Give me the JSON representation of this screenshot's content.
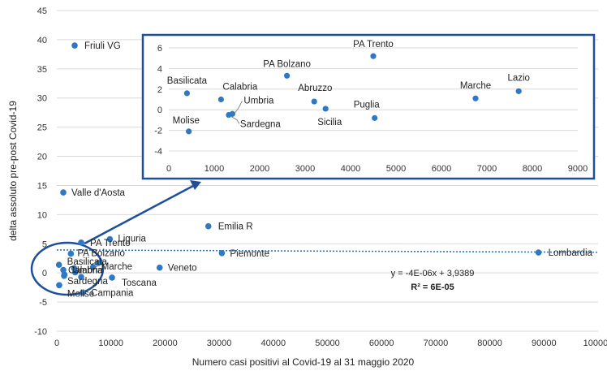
{
  "chart_data": [
    {
      "type": "scatter",
      "xlabel": "Numero casi positivi al Covid-19 al 31 maggio 2020",
      "ylabel": "delta assoluto pre-post Covid-19",
      "xlim": [
        0,
        100000
      ],
      "ylim": [
        -10,
        45
      ],
      "xticks": [
        0,
        10000,
        20000,
        30000,
        40000,
        50000,
        60000,
        70000,
        80000,
        90000,
        100000
      ],
      "yticks": [
        -10,
        -5,
        0,
        5,
        10,
        15,
        20,
        25,
        30,
        35,
        40,
        45
      ],
      "grid": true,
      "point_color": "#2f78c4",
      "points": [
        {
          "label": "Friuli VG",
          "x": 3300,
          "y": 39
        },
        {
          "label": "Valle d'Aosta",
          "x": 1200,
          "y": 13.8
        },
        {
          "label": "Emilia R",
          "x": 28000,
          "y": 8
        },
        {
          "label": "Liguria",
          "x": 9800,
          "y": 5.8
        },
        {
          "label": "PA Trento",
          "x": 4500,
          "y": 5.2
        },
        {
          "label": "PA Bolzano",
          "x": 2600,
          "y": 3.3
        },
        {
          "label": "Piemonte",
          "x": 30500,
          "y": 3.4
        },
        {
          "label": "Lombardia",
          "x": 89000,
          "y": 3.5
        },
        {
          "label": "Basilicata",
          "x": 400,
          "y": 1.4
        },
        {
          "label": "Marche",
          "x": 6700,
          "y": 1.0
        },
        {
          "label": "Veneto",
          "x": 19000,
          "y": 0.9
        },
        {
          "label": "Calabria",
          "x": 1200,
          "y": 0.5
        },
        {
          "label": "Umbria",
          "x": 1400,
          "y": -0.3
        },
        {
          "label": "Sardegna",
          "x": 1350,
          "y": -0.5
        },
        {
          "label": "Toscana",
          "x": 10200,
          "y": -0.8
        },
        {
          "label": "Molise",
          "x": 440,
          "y": -2.1
        },
        {
          "label": "Campania",
          "x": 4800,
          "y": -3.4
        },
        {
          "label": "",
          "x": 3200,
          "y": 0.8
        },
        {
          "label": "",
          "x": 3400,
          "y": 0.1
        },
        {
          "label": "",
          "x": 4500,
          "y": -0.7
        },
        {
          "label": "",
          "x": 7700,
          "y": 1.7
        }
      ],
      "trendline": {
        "equation": "y = -4E-06x + 3,9389",
        "r_squared": "R² = 6E-05",
        "slope": -4e-06,
        "intercept": 3.9389,
        "color": "#2f78c4"
      }
    },
    {
      "type": "scatter",
      "xlim": [
        0,
        9000
      ],
      "ylim": [
        -4,
        6
      ],
      "xticks": [
        0,
        1000,
        2000,
        3000,
        4000,
        5000,
        6000,
        7000,
        8000,
        9000
      ],
      "yticks": [
        -4,
        -2,
        0,
        2,
        4,
        6
      ],
      "grid": true,
      "point_color": "#2f78c4",
      "points": [
        {
          "label": "PA Trento",
          "x": 4500,
          "y": 5.2
        },
        {
          "label": "PA Bolzano",
          "x": 2600,
          "y": 3.3
        },
        {
          "label": "Basilicata",
          "x": 400,
          "y": 1.6
        },
        {
          "label": "Calabria",
          "x": 1150,
          "y": 1.0
        },
        {
          "label": "Abruzzo",
          "x": 3200,
          "y": 0.8
        },
        {
          "label": "Sicilia",
          "x": 3450,
          "y": 0.1
        },
        {
          "label": "Umbria",
          "x": 1400,
          "y": -0.4
        },
        {
          "label": "Sardegna",
          "x": 1320,
          "y": -0.5
        },
        {
          "label": "Puglia",
          "x": 4530,
          "y": -0.8
        },
        {
          "label": "Molise",
          "x": 440,
          "y": -2.1
        },
        {
          "label": "Marche",
          "x": 6750,
          "y": 1.1
        },
        {
          "label": "Lazio",
          "x": 7700,
          "y": 1.8
        }
      ]
    }
  ]
}
